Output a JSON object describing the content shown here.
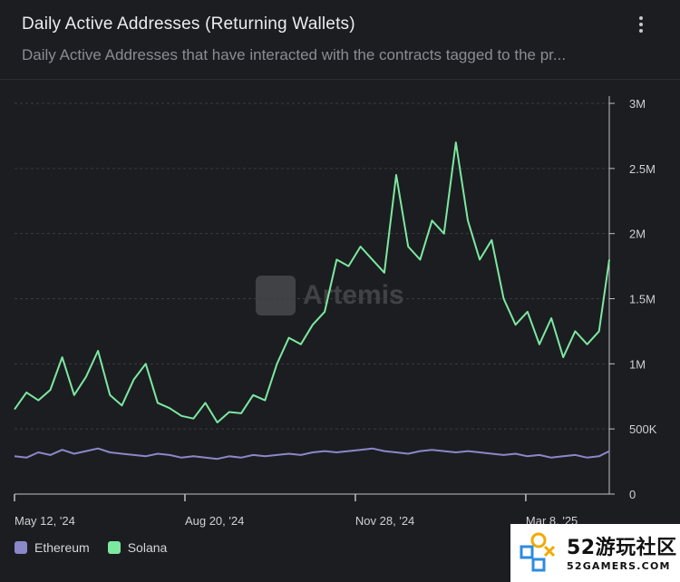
{
  "header": {
    "title": "Daily Active Addresses (Returning Wallets)",
    "subtitle": "Daily Active Addresses that have interacted with the contracts tagged to the pr...",
    "menu_icon": "more-vertical-icon"
  },
  "watermark": {
    "text": "Artemis"
  },
  "legend": [
    {
      "label": "Ethereum",
      "color": "#8a88c9"
    },
    {
      "label": "Solana",
      "color": "#7ce8a0"
    }
  ],
  "branding": {
    "top": "52游玩社区",
    "bottom": "52GAMERS.COM"
  },
  "chart_data": {
    "type": "line",
    "x_ticks": [
      "May 12, '24",
      "Aug 20, '24",
      "Nov 28, '24",
      "Mar 8, '25"
    ],
    "y_ticks": [
      "0",
      "500K",
      "1M",
      "1.5M",
      "2M",
      "2.5M",
      "3M"
    ],
    "ylim": [
      0,
      3000000
    ],
    "x_start": "2024-05-12",
    "x_end": "2025-04-26",
    "grid": true,
    "legend_position": "bottom-left",
    "series": [
      {
        "name": "Ethereum",
        "color": "#8a88c9",
        "points": [
          [
            "2024-05-12",
            290000
          ],
          [
            "2024-05-19",
            280000
          ],
          [
            "2024-05-26",
            320000
          ],
          [
            "2024-06-02",
            300000
          ],
          [
            "2024-06-09",
            340000
          ],
          [
            "2024-06-16",
            310000
          ],
          [
            "2024-06-23",
            330000
          ],
          [
            "2024-06-30",
            350000
          ],
          [
            "2024-07-07",
            320000
          ],
          [
            "2024-07-14",
            310000
          ],
          [
            "2024-07-21",
            300000
          ],
          [
            "2024-07-28",
            290000
          ],
          [
            "2024-08-04",
            310000
          ],
          [
            "2024-08-11",
            300000
          ],
          [
            "2024-08-18",
            280000
          ],
          [
            "2024-08-25",
            290000
          ],
          [
            "2024-09-01",
            280000
          ],
          [
            "2024-09-08",
            270000
          ],
          [
            "2024-09-15",
            290000
          ],
          [
            "2024-09-22",
            280000
          ],
          [
            "2024-09-29",
            300000
          ],
          [
            "2024-10-06",
            290000
          ],
          [
            "2024-10-13",
            300000
          ],
          [
            "2024-10-20",
            310000
          ],
          [
            "2024-10-27",
            300000
          ],
          [
            "2024-11-03",
            320000
          ],
          [
            "2024-11-10",
            330000
          ],
          [
            "2024-11-17",
            320000
          ],
          [
            "2024-11-24",
            330000
          ],
          [
            "2024-12-01",
            340000
          ],
          [
            "2024-12-08",
            350000
          ],
          [
            "2024-12-15",
            330000
          ],
          [
            "2024-12-22",
            320000
          ],
          [
            "2024-12-29",
            310000
          ],
          [
            "2025-01-05",
            330000
          ],
          [
            "2025-01-12",
            340000
          ],
          [
            "2025-01-19",
            330000
          ],
          [
            "2025-01-26",
            320000
          ],
          [
            "2025-02-02",
            330000
          ],
          [
            "2025-02-09",
            320000
          ],
          [
            "2025-02-16",
            310000
          ],
          [
            "2025-02-23",
            300000
          ],
          [
            "2025-03-02",
            310000
          ],
          [
            "2025-03-09",
            290000
          ],
          [
            "2025-03-16",
            300000
          ],
          [
            "2025-03-23",
            280000
          ],
          [
            "2025-03-30",
            290000
          ],
          [
            "2025-04-06",
            300000
          ],
          [
            "2025-04-13",
            280000
          ],
          [
            "2025-04-20",
            290000
          ],
          [
            "2025-04-26",
            330000
          ]
        ]
      },
      {
        "name": "Solana",
        "color": "#7ce8a0",
        "points": [
          [
            "2024-05-12",
            650000
          ],
          [
            "2024-05-19",
            780000
          ],
          [
            "2024-05-26",
            720000
          ],
          [
            "2024-06-02",
            800000
          ],
          [
            "2024-06-09",
            1050000
          ],
          [
            "2024-06-16",
            760000
          ],
          [
            "2024-06-23",
            900000
          ],
          [
            "2024-06-30",
            1100000
          ],
          [
            "2024-07-07",
            760000
          ],
          [
            "2024-07-14",
            680000
          ],
          [
            "2024-07-21",
            880000
          ],
          [
            "2024-07-28",
            1000000
          ],
          [
            "2024-08-04",
            700000
          ],
          [
            "2024-08-11",
            660000
          ],
          [
            "2024-08-18",
            600000
          ],
          [
            "2024-08-25",
            580000
          ],
          [
            "2024-09-01",
            700000
          ],
          [
            "2024-09-08",
            550000
          ],
          [
            "2024-09-15",
            630000
          ],
          [
            "2024-09-22",
            620000
          ],
          [
            "2024-09-29",
            760000
          ],
          [
            "2024-10-06",
            720000
          ],
          [
            "2024-10-13",
            1000000
          ],
          [
            "2024-10-20",
            1200000
          ],
          [
            "2024-10-27",
            1150000
          ],
          [
            "2024-11-03",
            1300000
          ],
          [
            "2024-11-10",
            1400000
          ],
          [
            "2024-11-17",
            1800000
          ],
          [
            "2024-11-24",
            1750000
          ],
          [
            "2024-12-01",
            1900000
          ],
          [
            "2024-12-08",
            1800000
          ],
          [
            "2024-12-15",
            1700000
          ],
          [
            "2024-12-22",
            2450000
          ],
          [
            "2024-12-29",
            1900000
          ],
          [
            "2025-01-05",
            1800000
          ],
          [
            "2025-01-12",
            2100000
          ],
          [
            "2025-01-19",
            2000000
          ],
          [
            "2025-01-26",
            2700000
          ],
          [
            "2025-02-02",
            2100000
          ],
          [
            "2025-02-09",
            1800000
          ],
          [
            "2025-02-16",
            1950000
          ],
          [
            "2025-02-23",
            1500000
          ],
          [
            "2025-03-02",
            1300000
          ],
          [
            "2025-03-09",
            1400000
          ],
          [
            "2025-03-16",
            1150000
          ],
          [
            "2025-03-23",
            1350000
          ],
          [
            "2025-03-30",
            1050000
          ],
          [
            "2025-04-06",
            1250000
          ],
          [
            "2025-04-13",
            1150000
          ],
          [
            "2025-04-20",
            1250000
          ],
          [
            "2025-04-26",
            1800000
          ]
        ]
      }
    ]
  }
}
